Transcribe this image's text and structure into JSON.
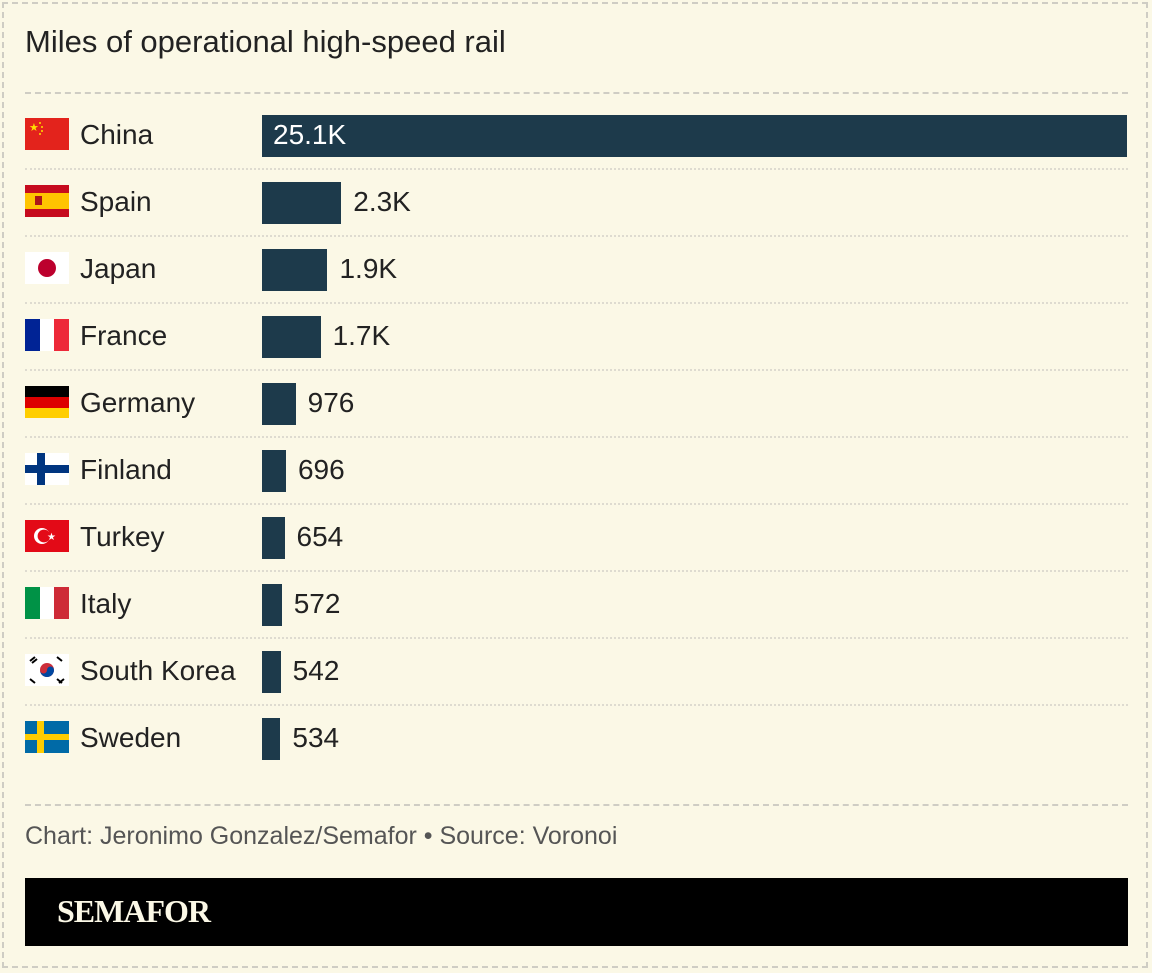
{
  "chart_data": {
    "type": "bar",
    "orientation": "horizontal",
    "title": "Miles of operational high-speed rail",
    "categories": [
      "China",
      "Spain",
      "Japan",
      "France",
      "Germany",
      "Finland",
      "Turkey",
      "Italy",
      "South Korea",
      "Sweden"
    ],
    "values": [
      25100,
      2300,
      1900,
      1700,
      976,
      696,
      654,
      572,
      542,
      534
    ],
    "data_labels": [
      "25.1K",
      "2.3K",
      "1.9K",
      "1.7K",
      "976",
      "696",
      "654",
      "572",
      "542",
      "534"
    ],
    "flags": [
      "china-flag",
      "spain-flag",
      "japan-flag",
      "france-flag",
      "germany-flag",
      "finland-flag",
      "turkey-flag",
      "italy-flag",
      "south-korea-flag",
      "sweden-flag"
    ],
    "bar_color": "#1d3a4b",
    "grid": false
  },
  "footer": {
    "credit": "Chart: Jeronimo Gonzalez/Semafor • Source: Voronoi",
    "brand": "SEMAFOR"
  },
  "colors": {
    "background": "#fbf8e6",
    "brand_bar": "#000000"
  }
}
